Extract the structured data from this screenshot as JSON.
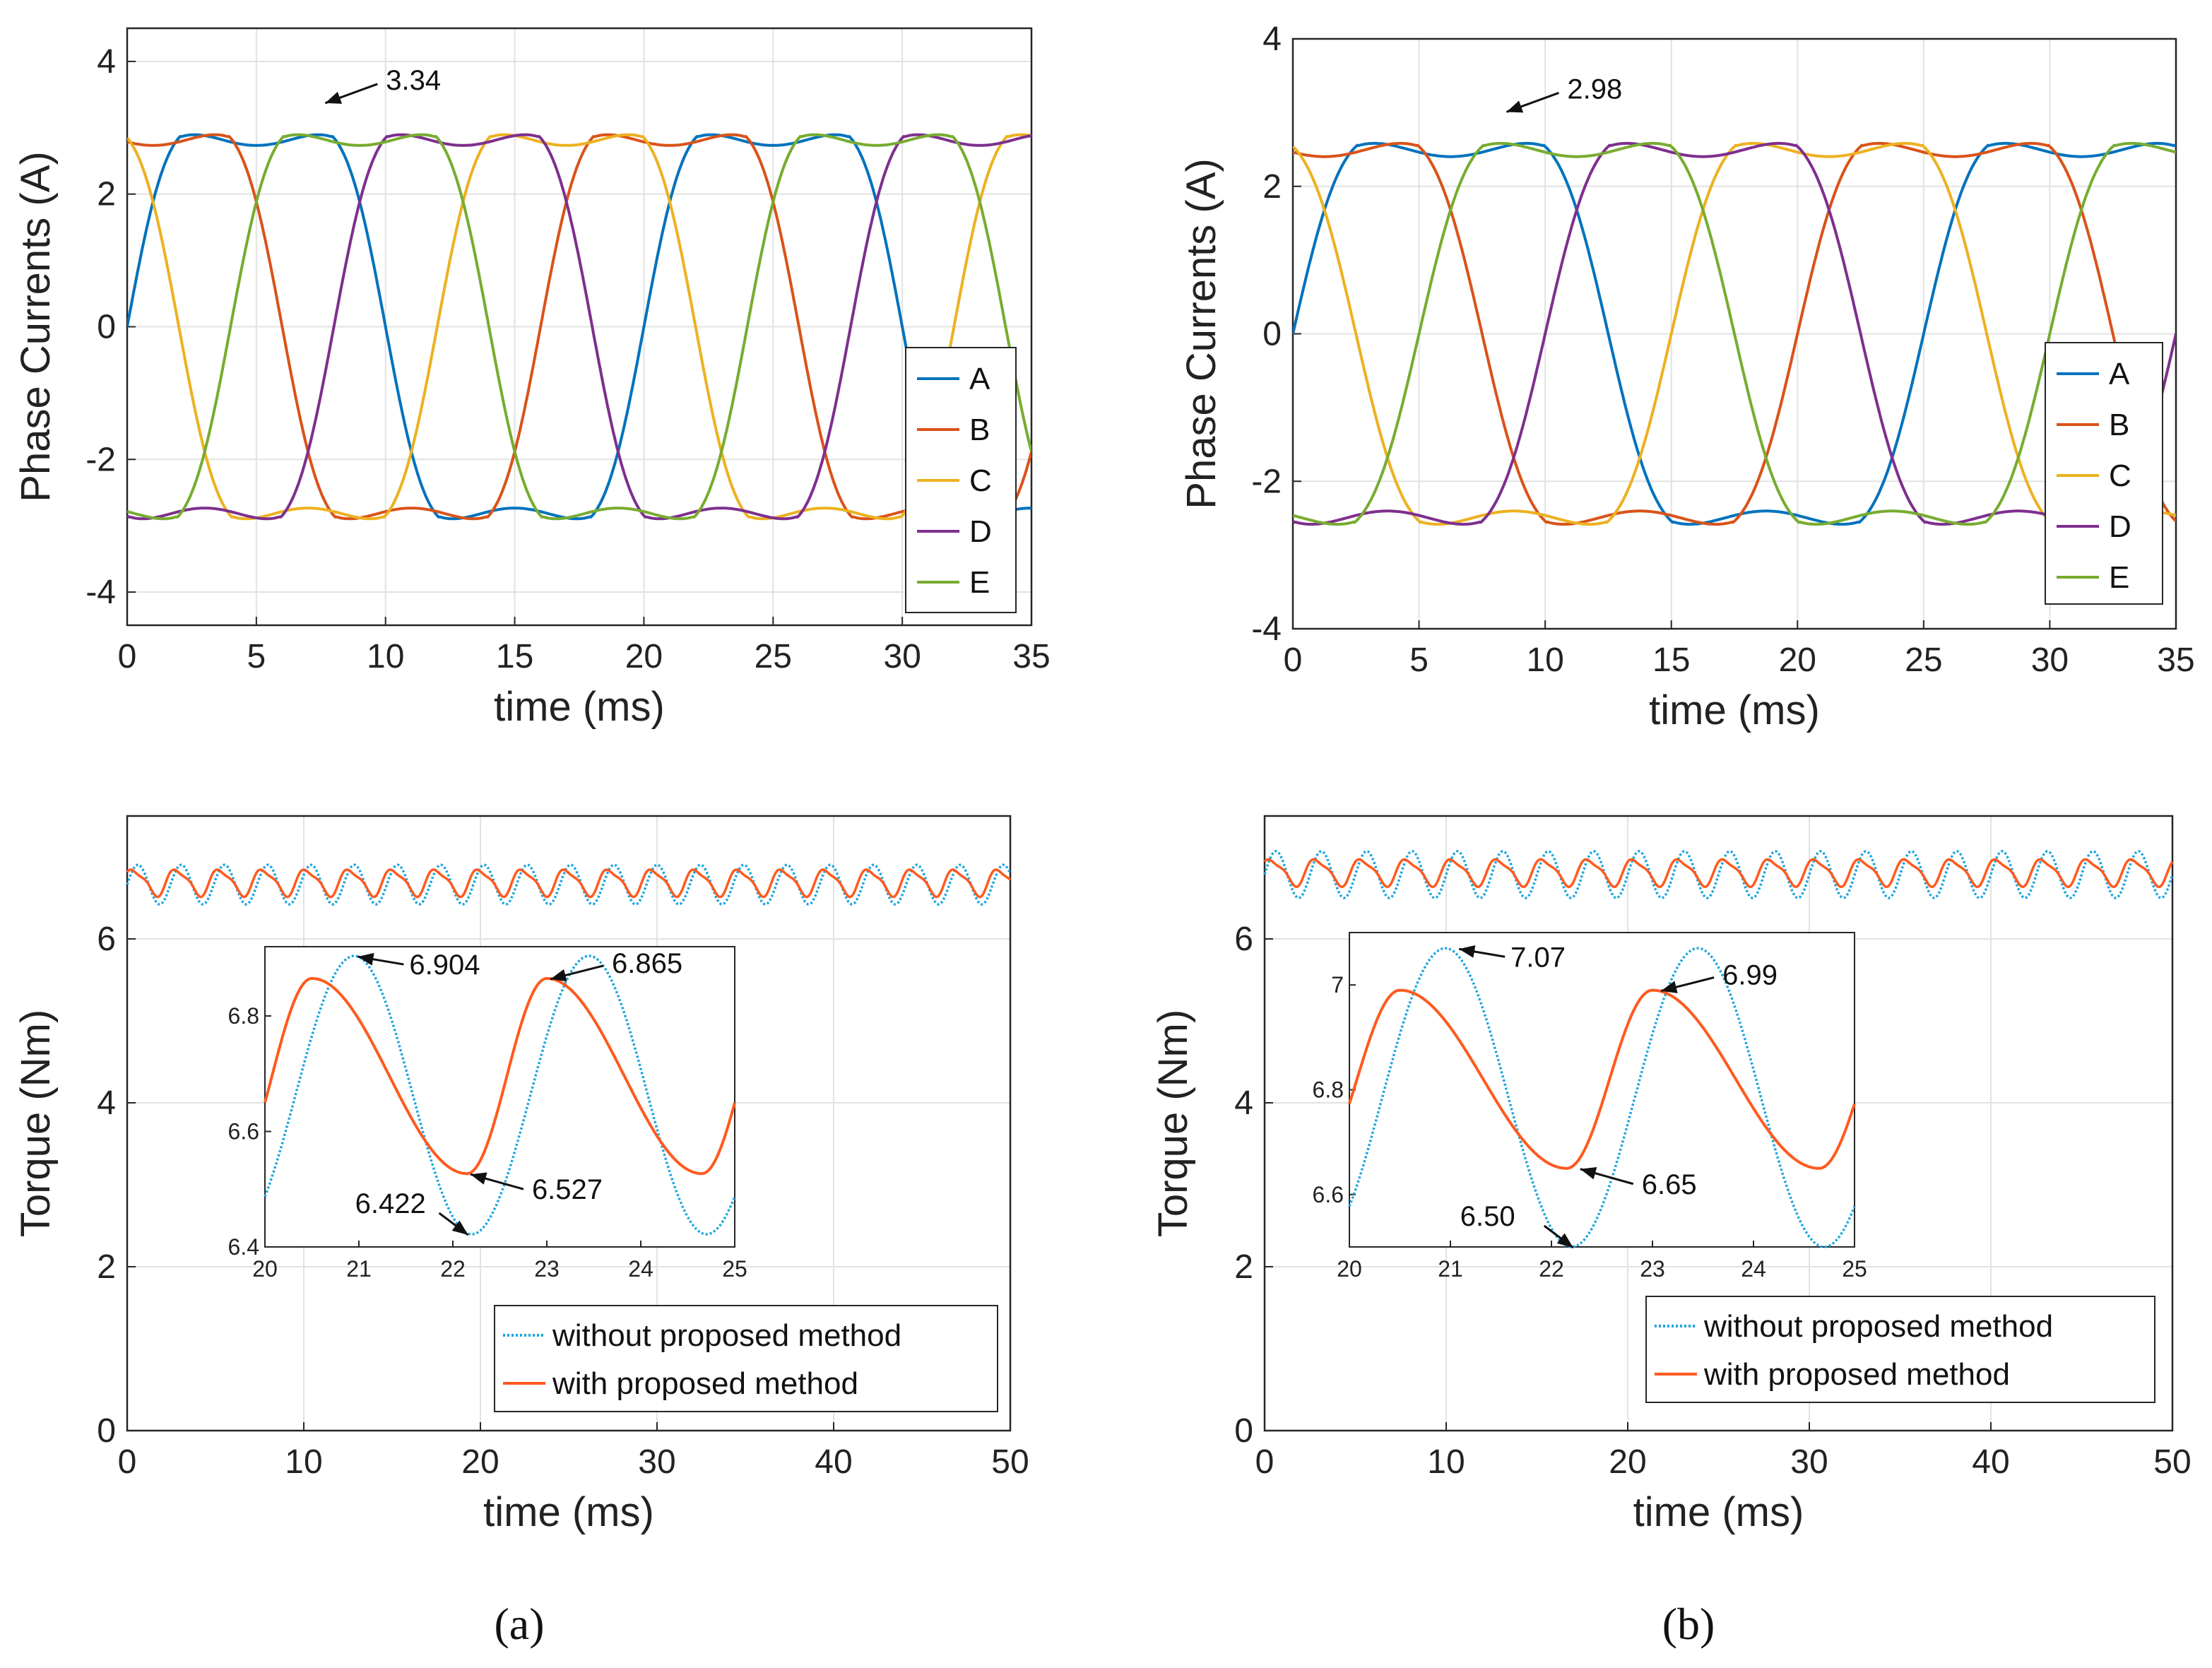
{
  "chart_data": [
    {
      "id": "a-currents",
      "type": "line",
      "xlabel": "time (ms)",
      "ylabel": "Phase Currents (A)",
      "xlim": [
        0,
        35
      ],
      "ylim": [
        -4.5,
        4.5
      ],
      "xticks": [
        0,
        5,
        10,
        15,
        20,
        25,
        30,
        35
      ],
      "yticks": [
        -4,
        -2,
        0,
        2,
        4
      ],
      "period_ms": 20,
      "amplitude": 3.34,
      "flat_top_dip": 0.3,
      "series": [
        {
          "name": "A",
          "color": "#0072BD",
          "phase_deg": 0
        },
        {
          "name": "B",
          "color": "#D95319",
          "phase_deg": 72
        },
        {
          "name": "C",
          "color": "#EDB120",
          "phase_deg": 144
        },
        {
          "name": "D",
          "color": "#7E2F8E",
          "phase_deg": 216
        },
        {
          "name": "E",
          "color": "#77AC30",
          "phase_deg": 288
        }
      ],
      "annotation": {
        "text": "3.34",
        "x": 7.5,
        "y": 3.34
      },
      "legend_loc": "bottom-right"
    },
    {
      "id": "b-currents",
      "type": "line",
      "xlabel": "time (ms)",
      "ylabel": "Phase Currents (A)",
      "xlim": [
        0,
        35
      ],
      "ylim": [
        -4,
        4
      ],
      "xticks": [
        0,
        5,
        10,
        15,
        20,
        25,
        30,
        35
      ],
      "yticks": [
        -4,
        -2,
        0,
        2,
        4
      ],
      "period_ms": 25,
      "amplitude": 2.98,
      "flat_top_dip": 0.38,
      "series": [
        {
          "name": "A",
          "color": "#0072BD",
          "phase_deg": 0
        },
        {
          "name": "B",
          "color": "#D95319",
          "phase_deg": 72
        },
        {
          "name": "C",
          "color": "#EDB120",
          "phase_deg": 144
        },
        {
          "name": "D",
          "color": "#7E2F8E",
          "phase_deg": 216
        },
        {
          "name": "E",
          "color": "#77AC30",
          "phase_deg": 288
        }
      ],
      "annotation": {
        "text": "2.98",
        "x": 8.3,
        "y": 2.98
      },
      "legend_loc": "bottom-right"
    },
    {
      "id": "a-torque",
      "type": "line",
      "xlabel": "time (ms)",
      "ylabel": "Torque (Nm)",
      "xlim": [
        0,
        50
      ],
      "ylim": [
        0,
        7.5
      ],
      "xticks": [
        0,
        10,
        20,
        30,
        40,
        50
      ],
      "yticks": [
        0,
        2,
        4,
        6
      ],
      "ripple_period_ms": 2.45,
      "series": [
        {
          "name": "without proposed method",
          "color": "#1AA6E0",
          "style": "dotted",
          "max": 6.904,
          "min": 6.422
        },
        {
          "name": "with proposed method",
          "color": "#FF5A1F",
          "style": "solid",
          "max": 6.865,
          "min": 6.527
        }
      ],
      "inset": {
        "xlim": [
          20,
          25
        ],
        "ylim": [
          6.4,
          6.92
        ],
        "xticks": [
          20,
          21,
          22,
          23,
          24,
          25
        ],
        "yticks": [
          6.4,
          6.6,
          6.8
        ],
        "annotations": [
          {
            "text": "6.904",
            "x": 20.95,
            "y": 6.904
          },
          {
            "text": "6.865",
            "x": 23.0,
            "y": 6.865
          },
          {
            "text": "6.527",
            "x": 22.15,
            "y": 6.527
          },
          {
            "text": "6.422",
            "x": 22.2,
            "y": 6.422
          }
        ]
      },
      "legend_loc": "bottom-right"
    },
    {
      "id": "b-torque",
      "type": "line",
      "xlabel": "time (ms)",
      "ylabel": "Torque (Nm)",
      "xlim": [
        0,
        50
      ],
      "ylim": [
        0,
        7.5
      ],
      "xticks": [
        0,
        10,
        20,
        30,
        40,
        50
      ],
      "yticks": [
        0,
        2,
        4,
        6
      ],
      "ripple_period_ms": 2.5,
      "series": [
        {
          "name": "without proposed method",
          "color": "#1AA6E0",
          "style": "dotted",
          "max": 7.07,
          "min": 6.5
        },
        {
          "name": "with proposed method",
          "color": "#FF5A1F",
          "style": "solid",
          "max": 6.99,
          "min": 6.65
        }
      ],
      "inset": {
        "xlim": [
          20,
          25
        ],
        "ylim": [
          6.5,
          7.1
        ],
        "xticks": [
          20,
          21,
          22,
          23,
          24,
          25
        ],
        "yticks": [
          6.6,
          6.8,
          7
        ],
        "annotations": [
          {
            "text": "7.07",
            "x": 21.05,
            "y": 7.07
          },
          {
            "text": "6.99",
            "x": 23.05,
            "y": 6.99
          },
          {
            "text": "6.65",
            "x": 22.25,
            "y": 6.65
          },
          {
            "text": "6.50",
            "x": 22.25,
            "y": 6.5
          }
        ]
      },
      "legend_loc": "bottom-right"
    }
  ],
  "captions": {
    "a": "(a)",
    "b": "(b)"
  }
}
